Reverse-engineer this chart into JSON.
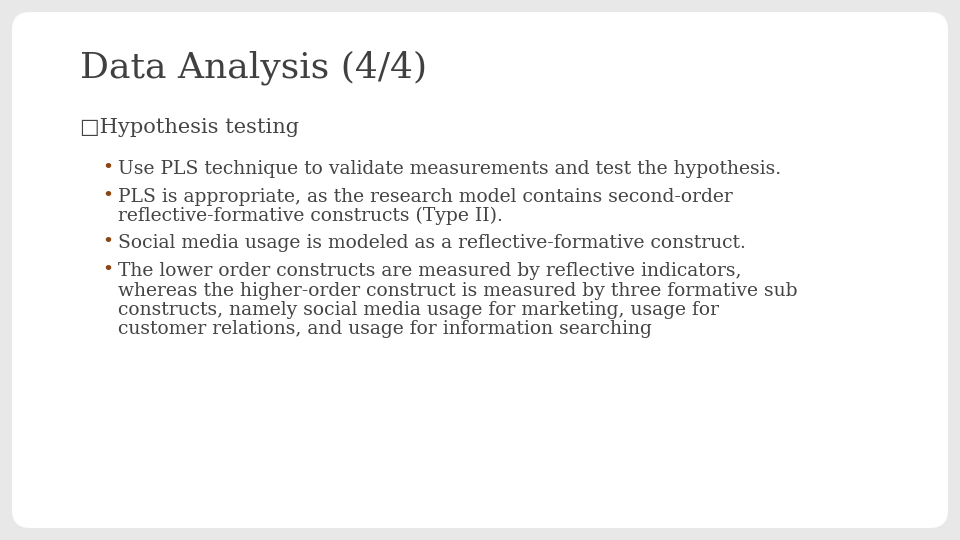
{
  "title": "Data Analysis (4/4)",
  "title_color": "#404040",
  "title_fontsize": 26,
  "title_bold": false,
  "background_color": "#e8e8e8",
  "slide_bg": "#ffffff",
  "section_label": "□Hypothesis testing",
  "section_color": "#444444",
  "section_fontsize": 15,
  "bullet_color": "#444444",
  "bullet_dot_color": "#8b4513",
  "bullet_fontsize": 13.5,
  "bullets": [
    "Use PLS technique to validate measurements and test the hypothesis.",
    "PLS is appropriate, as the research model contains second-order\nreflective-formative constructs (Type II).",
    "Social media usage is modeled as a reflective-formative construct.",
    "The lower order constructs are measured by reflective indicators,\nwhereas the higher-order construct is measured by three formative sub\nconstructs, namely social media usage for marketing, usage for\ncustomer relations, and usage for information searching"
  ]
}
